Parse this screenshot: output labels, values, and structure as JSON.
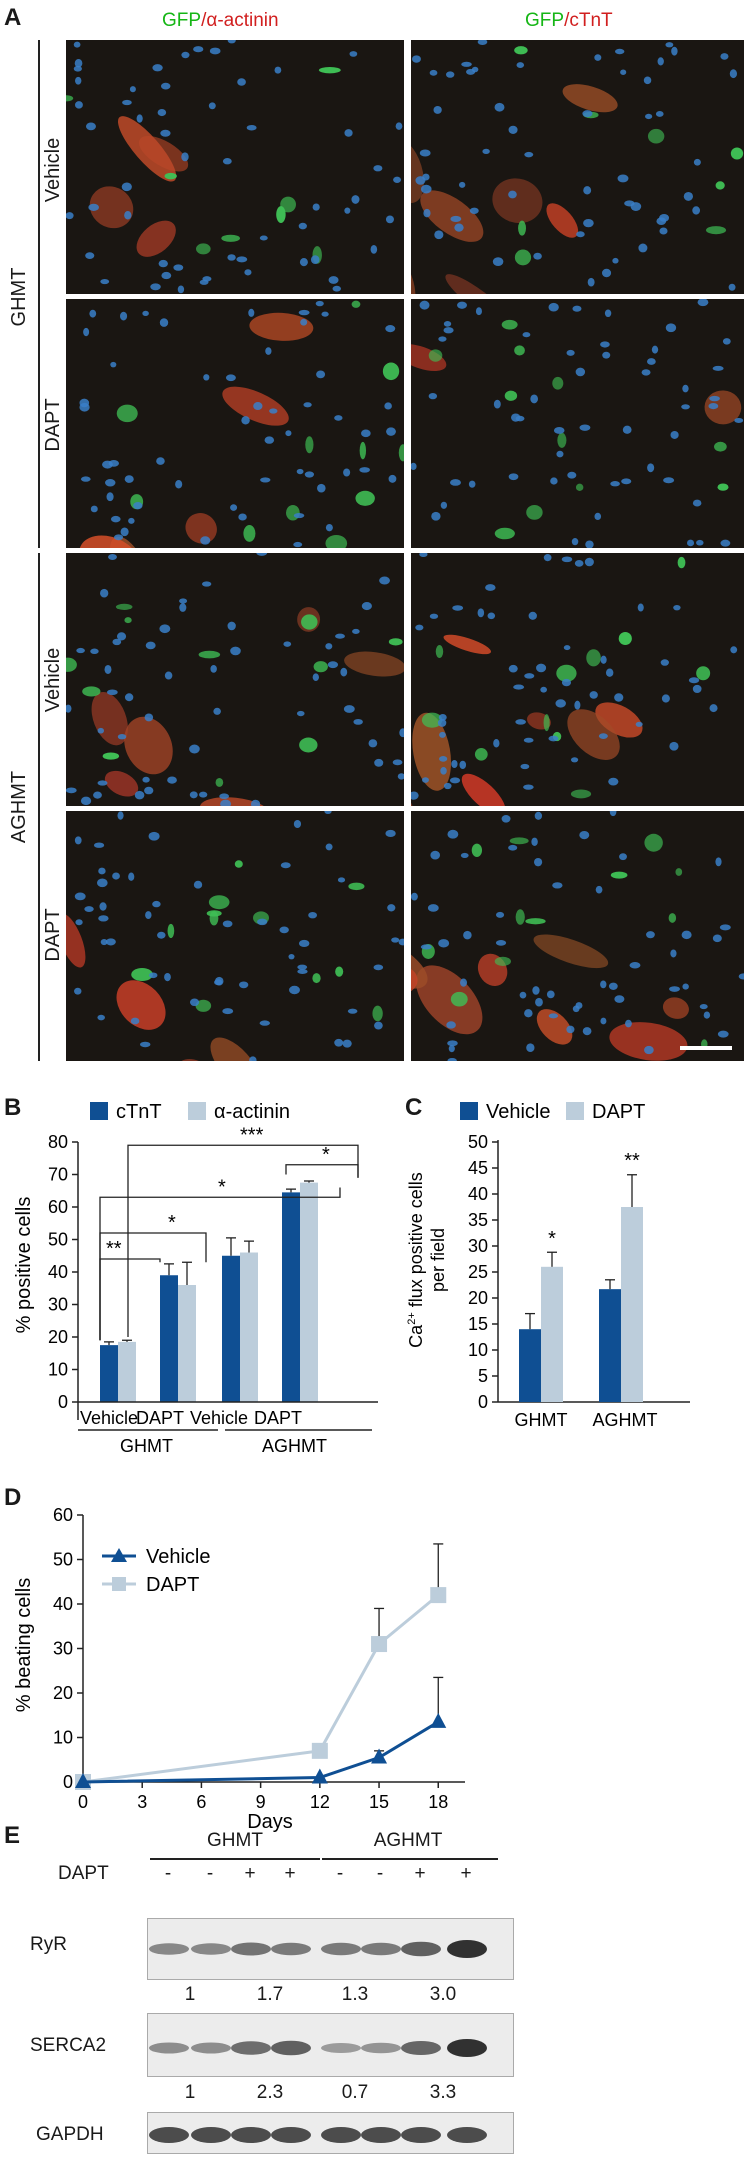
{
  "panel_a": {
    "label": "A",
    "col1_title_green": "GFP",
    "col1_title_red": "/α-actinin",
    "col2_title_green": "GFP",
    "col2_title_red": "/cTnT",
    "groups": [
      "GHMT",
      "AGHMT"
    ],
    "rows": [
      "Vehicle",
      "DAPT",
      "Vehicle",
      "DAPT"
    ]
  },
  "panel_b": {
    "label": "B",
    "legend": [
      "cTnT",
      "α-actinin"
    ],
    "ylabel": "% positive cells",
    "yticks": [
      "0",
      "10",
      "20",
      "30",
      "40",
      "50",
      "60",
      "70",
      "80"
    ],
    "xticks": [
      "Vehicle",
      "DAPT",
      "Vehicle",
      "DAPT"
    ],
    "groups": [
      "GHMT",
      "AGHMT"
    ],
    "sig": [
      "**",
      "*",
      "*",
      "*",
      "***"
    ]
  },
  "panel_c": {
    "label": "C",
    "legend": [
      "Vehicle",
      "DAPT"
    ],
    "ylabel_main": "Ca",
    "ylabel_sup": "2+",
    "ylabel_rest": " flux positive cells",
    "ylabel_line2": "per field",
    "yticks": [
      "0",
      "5",
      "10",
      "15",
      "20",
      "25",
      "30",
      "35",
      "40",
      "45",
      "50"
    ],
    "xticks": [
      "GHMT",
      "AGHMT"
    ],
    "sig": [
      "*",
      "**"
    ]
  },
  "panel_d": {
    "label": "D",
    "legend": [
      "Vehicle",
      "DAPT"
    ],
    "ylabel": "% beating cells",
    "xlabel": "Days",
    "yticks": [
      "0",
      "10",
      "20",
      "30",
      "40",
      "50",
      "60"
    ],
    "xticks": [
      "0",
      "3",
      "6",
      "9",
      "12",
      "15",
      "18"
    ]
  },
  "panel_e": {
    "label": "E",
    "groups": [
      "GHMT",
      "AGHMT"
    ],
    "dapt_label": "DAPT",
    "dapt_signs": [
      "-",
      "-",
      "+",
      "+",
      "-",
      "-",
      "+",
      "+"
    ],
    "bands": [
      "RyR",
      "SERCA2",
      "GAPDH"
    ],
    "ryr_ratios": [
      "1",
      "1.7",
      "1.3",
      "3.0"
    ],
    "serca_ratios": [
      "1",
      "2.3",
      "0.7",
      "3.3"
    ]
  },
  "chart_data": [
    {
      "type": "bar",
      "panel": "B",
      "categories": [
        "GHMT Vehicle",
        "GHMT DAPT",
        "AGHMT Vehicle",
        "AGHMT DAPT"
      ],
      "series": [
        {
          "name": "cTnT",
          "values": [
            17.5,
            39,
            45,
            64.5
          ],
          "errors": [
            1,
            3.5,
            5.5,
            1
          ]
        },
        {
          "name": "α-actinin",
          "values": [
            18.5,
            36,
            46,
            67.5
          ],
          "errors": [
            0.5,
            7,
            3.5,
            0.5
          ]
        }
      ],
      "ylabel": "% positive cells",
      "ylim": [
        0,
        80
      ],
      "colors": [
        "#0f4f93",
        "#bccddb"
      ]
    },
    {
      "type": "bar",
      "panel": "C",
      "categories": [
        "GHMT",
        "AGHMT"
      ],
      "series": [
        {
          "name": "Vehicle",
          "values": [
            14,
            21.7
          ],
          "errors": [
            3,
            1.8
          ]
        },
        {
          "name": "DAPT",
          "values": [
            26,
            37.5
          ],
          "errors": [
            2.8,
            6.2
          ]
        }
      ],
      "ylim": [
        0,
        50
      ],
      "colors": [
        "#0f4f93",
        "#bccddb"
      ]
    },
    {
      "type": "line",
      "panel": "D",
      "x": [
        0,
        12,
        15,
        18
      ],
      "series": [
        {
          "name": "Vehicle",
          "values": [
            0,
            1,
            5.5,
            13.5
          ],
          "errors": [
            0,
            0,
            1.5,
            10
          ]
        },
        {
          "name": "DAPT",
          "values": [
            0,
            7,
            31,
            42
          ],
          "errors": [
            0,
            0,
            8,
            11.5
          ]
        }
      ],
      "xlabel": "Days",
      "ylabel": "% beating cells",
      "xlim": [
        0,
        18
      ],
      "ylim": [
        0,
        60
      ],
      "colors": [
        "#0f4f93",
        "#bccddb"
      ]
    }
  ]
}
